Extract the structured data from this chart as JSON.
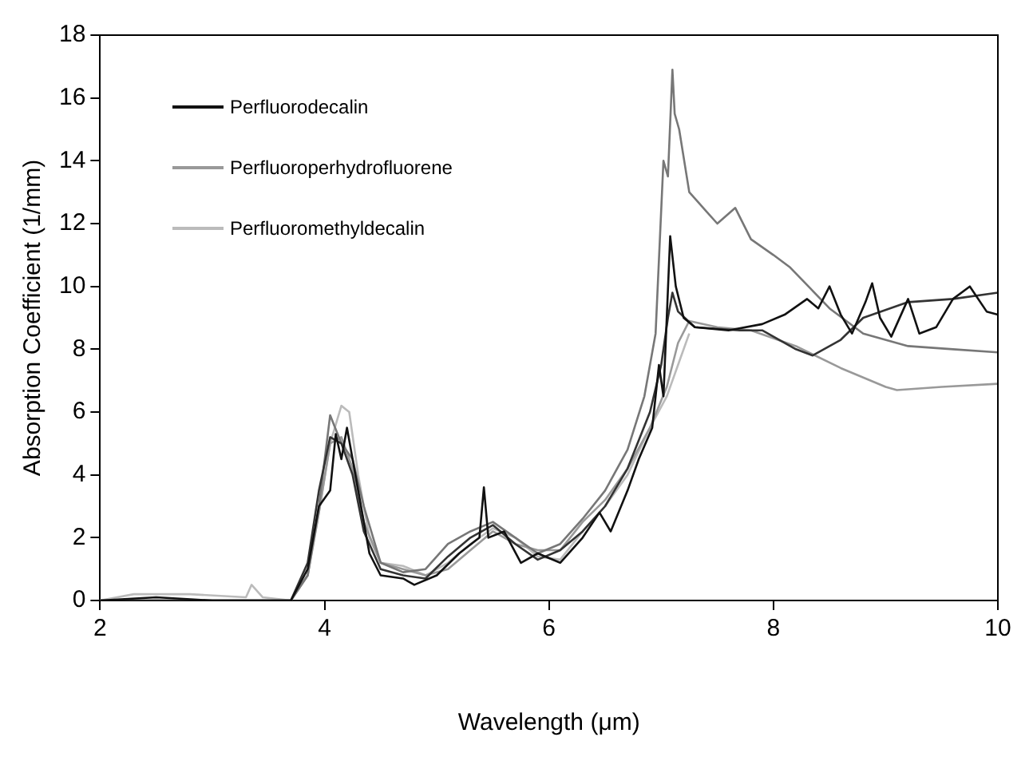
{
  "chart_data": {
    "type": "line",
    "xlabel": "Wavelength (μm)",
    "ylabel": "Absorption Coefficient (1/mm)",
    "xlim": [
      2,
      10
    ],
    "xticks": [
      2,
      4,
      6,
      8,
      10
    ],
    "ylim": [
      0,
      18
    ],
    "yticks": [
      0,
      2,
      4,
      6,
      8,
      10,
      12,
      14,
      16,
      18
    ],
    "grid": false,
    "legend": "top left",
    "marker": "none",
    "line_style": "solid",
    "series": [
      {
        "name": "Perfluorodecalin",
        "color": "#111111",
        "x": [
          2,
          2.5,
          3,
          3.7,
          3.85,
          3.95,
          4.05,
          4.1,
          4.15,
          4.2,
          4.3,
          4.4,
          4.5,
          4.7,
          4.8,
          5,
          5.2,
          5.38,
          5.42,
          5.46,
          5.6,
          5.75,
          5.9,
          6.1,
          6.3,
          6.45,
          6.55,
          6.7,
          6.8,
          6.92,
          6.98,
          7.02,
          7.08,
          7.13,
          7.2,
          7.3,
          7.6,
          7.9,
          8.1,
          8.3,
          8.4,
          8.5,
          8.6,
          8.7,
          8.82,
          8.88,
          8.95,
          9.05,
          9.2,
          9.3,
          9.45,
          9.6,
          9.75,
          9.9,
          10
        ],
        "values": [
          0,
          0.1,
          0,
          0,
          1,
          3,
          3.5,
          5.3,
          4.5,
          5.5,
          3.5,
          1.5,
          0.8,
          0.7,
          0.5,
          0.8,
          1.5,
          2,
          3.6,
          2,
          2.2,
          1.2,
          1.5,
          1.2,
          2,
          2.8,
          2.2,
          3.5,
          4.5,
          5.5,
          7.5,
          6.5,
          11.6,
          10,
          9,
          8.7,
          8.6,
          8.8,
          9.1,
          9.6,
          9.3,
          10,
          9.1,
          8.5,
          9.5,
          10.1,
          9,
          8.4,
          9.6,
          8.5,
          8.7,
          9.6,
          10,
          9.2,
          9.1
        ]
      },
      {
        "color": "#333333",
        "x": [
          2,
          3,
          3.7,
          3.85,
          3.95,
          4.05,
          4.15,
          4.25,
          4.35,
          4.5,
          4.7,
          4.9,
          5.1,
          5.3,
          5.5,
          5.7,
          5.9,
          6.1,
          6.3,
          6.5,
          6.7,
          6.9,
          7,
          7.06,
          7.1,
          7.15,
          7.3,
          7.7,
          7.9,
          8.2,
          8.35,
          8.6,
          8.8,
          9.2,
          9.6,
          10
        ],
        "values": [
          0,
          0,
          0,
          1.2,
          3.5,
          5.2,
          5,
          4,
          2.2,
          1,
          0.8,
          0.7,
          1.4,
          2,
          2.4,
          1.8,
          1.3,
          1.6,
          2.2,
          3,
          4.2,
          6,
          7.5,
          9,
          9.8,
          9.2,
          8.7,
          8.6,
          8.6,
          8,
          7.8,
          8.3,
          9,
          9.5,
          9.6,
          9.8
        ]
      },
      {
        "color": "#777777",
        "x": [
          2,
          3,
          3.7,
          3.85,
          3.95,
          4.05,
          4.15,
          4.25,
          4.35,
          4.5,
          4.7,
          4.9,
          5.1,
          5.3,
          5.5,
          5.7,
          5.9,
          6.1,
          6.3,
          6.5,
          6.7,
          6.85,
          6.95,
          7.02,
          7.06,
          7.1,
          7.12,
          7.16,
          7.25,
          7.4,
          7.5,
          7.66,
          7.8,
          8,
          8.15,
          8.5,
          8.8,
          9.2,
          9.6,
          10
        ],
        "values": [
          0,
          0,
          0,
          0.8,
          3,
          5.9,
          5,
          4.5,
          3,
          1.2,
          0.9,
          1,
          1.8,
          2.2,
          2.5,
          2,
          1.5,
          1.8,
          2.6,
          3.5,
          4.8,
          6.5,
          8.5,
          14,
          13.5,
          16.9,
          15.5,
          15,
          13,
          12.4,
          12,
          12.5,
          11.5,
          11,
          10.6,
          9.3,
          8.5,
          8.1,
          8,
          7.9
        ]
      },
      {
        "name": "Perfluoroperhydrofluorene",
        "color": "#999999",
        "x": [
          2,
          3,
          3.7,
          3.85,
          3.95,
          4.05,
          4.15,
          4.25,
          4.35,
          4.5,
          4.7,
          4.9,
          5.1,
          5.3,
          5.5,
          5.7,
          5.9,
          6.1,
          6.3,
          6.5,
          6.7,
          6.9,
          7.05,
          7.15,
          7.25,
          7.5,
          7.8,
          8.2,
          8.6,
          9,
          9.1,
          9.5,
          10
        ],
        "values": [
          0,
          0,
          0,
          0.8,
          2.8,
          5,
          5.2,
          4.2,
          2.5,
          1.2,
          1,
          0.8,
          1,
          1.6,
          2.2,
          1.8,
          1.6,
          1.6,
          2.5,
          3.2,
          4.2,
          5.5,
          6.8,
          8.2,
          8.9,
          8.7,
          8.6,
          8.1,
          7.4,
          6.8,
          6.7,
          6.8,
          6.9
        ]
      },
      {
        "name": "Perfluoromethyldecalin",
        "color": "#bbbbbb",
        "x": [
          2,
          2.3,
          2.8,
          3.3,
          3.35,
          3.45,
          3.7,
          3.85,
          3.95,
          4.05,
          4.15,
          4.22,
          4.3,
          4.4,
          4.5,
          4.7,
          4.9,
          5.1,
          5.3,
          5.5,
          5.7,
          5.9,
          6.1,
          6.3,
          6.5,
          6.7,
          6.9,
          7.05,
          7.15,
          7.25
        ],
        "values": [
          0,
          0.2,
          0.2,
          0.1,
          0.5,
          0.1,
          0,
          0.8,
          2.8,
          5,
          6.2,
          6,
          4,
          2,
          1.2,
          1.1,
          0.8,
          1.2,
          1.8,
          2.3,
          2,
          1.4,
          1.3,
          2.2,
          3,
          4,
          5.5,
          6.5,
          7.5,
          8.5
        ]
      }
    ]
  }
}
